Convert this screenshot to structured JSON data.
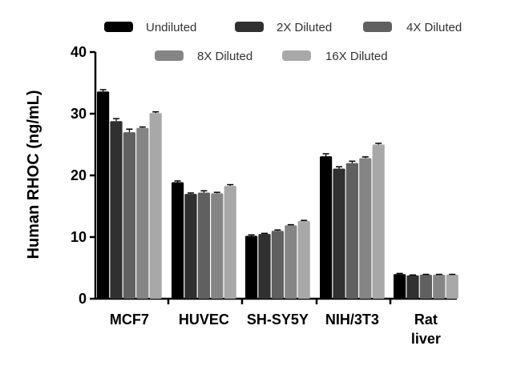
{
  "chart_data": {
    "type": "bar",
    "title": "",
    "xlabel": "",
    "ylabel": "Human RHOC (ng/mL)",
    "ylim": [
      0,
      40
    ],
    "yticks": [
      0,
      10,
      20,
      30,
      40
    ],
    "categories": [
      {
        "lines": [
          "MCF7"
        ]
      },
      {
        "lines": [
          "HUVEC"
        ]
      },
      {
        "lines": [
          "SH-SY5Y"
        ]
      },
      {
        "lines": [
          "NIH/3T3"
        ]
      },
      {
        "lines": [
          "Rat",
          "liver"
        ]
      }
    ],
    "legend_position": "top",
    "series": [
      {
        "name": "Undiluted",
        "color": "#000000",
        "values": [
          33.6,
          18.9,
          10.2,
          23.1,
          4.0
        ],
        "errors": [
          0.3,
          0.2,
          0.15,
          0.4,
          0.1
        ]
      },
      {
        "name": "2X Diluted",
        "color": "#303030",
        "values": [
          28.8,
          17.0,
          10.5,
          21.1,
          3.8
        ],
        "errors": [
          0.4,
          0.15,
          0.1,
          0.3,
          0.05
        ]
      },
      {
        "name": "4X Diluted",
        "color": "#606060",
        "values": [
          27.0,
          17.2,
          11.0,
          22.0,
          3.9
        ],
        "errors": [
          0.5,
          0.3,
          0.15,
          0.3,
          0.05
        ]
      },
      {
        "name": "8X Diluted",
        "color": "#858585",
        "values": [
          27.7,
          17.1,
          11.9,
          22.8,
          3.9
        ],
        "errors": [
          0.15,
          0.15,
          0.1,
          0.2,
          0.05
        ]
      },
      {
        "name": "16X Diluted",
        "color": "#a8a8a8",
        "values": [
          30.1,
          18.3,
          12.6,
          25.0,
          3.9
        ],
        "errors": [
          0.2,
          0.2,
          0.1,
          0.2,
          0.05
        ]
      }
    ]
  }
}
